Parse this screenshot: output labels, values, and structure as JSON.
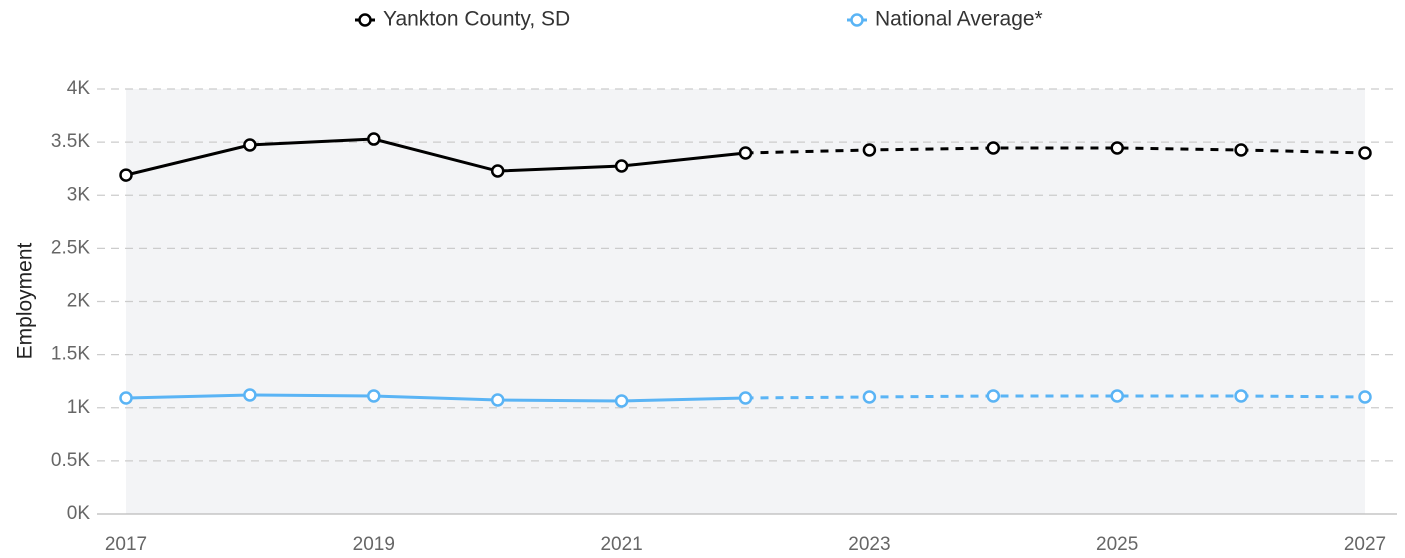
{
  "chart_data": {
    "type": "line",
    "y_label": "Employment",
    "x": [
      2017,
      2018,
      2019,
      2020,
      2021,
      2022,
      2023,
      2024,
      2025,
      2026,
      2027
    ],
    "series": [
      {
        "name": "Yankton County, SD",
        "color": "#000000",
        "values": [
          3190,
          3473,
          3529,
          3228,
          3275,
          3398,
          3426,
          3445,
          3445,
          3426,
          3398
        ]
      },
      {
        "name": "National Average*",
        "color": "#5ab4f5",
        "values": [
          1092,
          1120,
          1111,
          1073,
          1064,
          1092,
          1101,
          1111,
          1111,
          1111,
          1101
        ]
      }
    ],
    "dashed_from": 2022,
    "xlim": [
      2017,
      2027
    ],
    "xticks": [
      2017,
      2019,
      2021,
      2023,
      2025,
      2027
    ],
    "ylim": [
      0,
      4000
    ],
    "yticks": [
      {
        "value": 0,
        "label": "0K"
      },
      {
        "value": 500,
        "label": "0.5K"
      },
      {
        "value": 1000,
        "label": "1K"
      },
      {
        "value": 1500,
        "label": "1.5K"
      },
      {
        "value": 2000,
        "label": "2K"
      },
      {
        "value": 2500,
        "label": "2.5K"
      },
      {
        "value": 3000,
        "label": "3K"
      },
      {
        "value": 3500,
        "label": "3.5K"
      },
      {
        "value": 4000,
        "label": "4K"
      }
    ],
    "grid": true,
    "legend": "top"
  }
}
